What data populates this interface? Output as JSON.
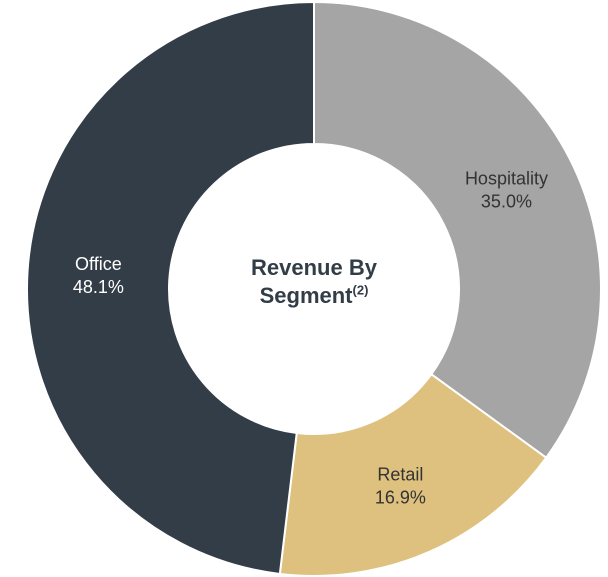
{
  "chart_data": {
    "type": "donut",
    "title": "Revenue By Segment",
    "title_note": "(2)",
    "categories": [
      "Hospitality",
      "Retail",
      "Office"
    ],
    "values": [
      35.0,
      16.9,
      48.1
    ],
    "value_labels": [
      "35.0%",
      "16.9%",
      "48.1%"
    ],
    "colors": [
      "#a5a5a5",
      "#dfc17f",
      "#333d48"
    ],
    "label_colors": [
      "#333333",
      "#333333",
      "#ffffff"
    ]
  }
}
